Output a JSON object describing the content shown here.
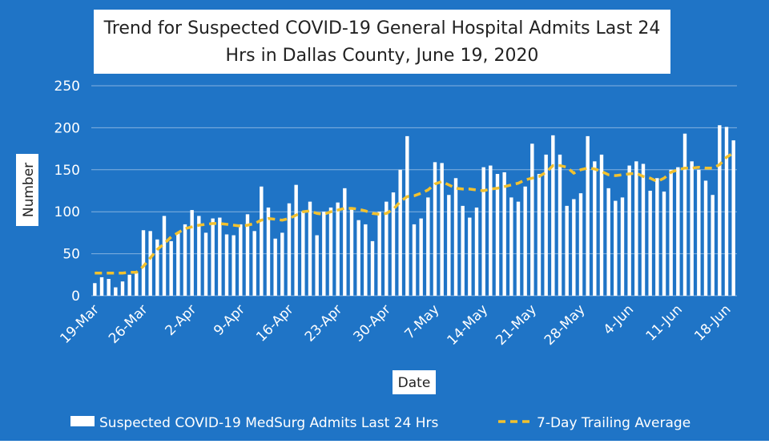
{
  "chart_data": {
    "type": "bar",
    "title": [
      "Trend for Suspected COVID-19 General Hospital Admits Last 24",
      "Hrs in Dallas County, June 19, 2020"
    ],
    "x_label": "Date",
    "y_label": "Number",
    "categories": [
      "19-Mar",
      null,
      null,
      null,
      null,
      null,
      null,
      "26-Mar",
      null,
      null,
      null,
      null,
      null,
      null,
      "2-Apr",
      null,
      null,
      null,
      null,
      null,
      null,
      "9-Apr",
      null,
      null,
      null,
      null,
      null,
      null,
      "16-Apr",
      null,
      null,
      null,
      null,
      null,
      null,
      "23-Apr",
      null,
      null,
      null,
      null,
      null,
      null,
      "30-Apr",
      null,
      null,
      null,
      null,
      null,
      null,
      "7-May",
      null,
      null,
      null,
      null,
      null,
      null,
      "14-May",
      null,
      null,
      null,
      null,
      null,
      null,
      "21-May",
      null,
      null,
      null,
      null,
      null,
      null,
      "28-May",
      null,
      null,
      null,
      null,
      null,
      null,
      "4-Jun",
      null,
      null,
      null,
      null,
      null,
      null,
      "11-Jun",
      null,
      null,
      null,
      null,
      null,
      null,
      "18-Jun",
      null
    ],
    "series": [
      {
        "name": "Suspected COVID-19 MedSurg Admits Last 24 Hrs",
        "color": "#ffffff",
        "type": "bar",
        "values": [
          15,
          22,
          20,
          10,
          17,
          25,
          27,
          78,
          77,
          67,
          95,
          65,
          75,
          85,
          102,
          95,
          75,
          92,
          93,
          73,
          72,
          85,
          97,
          77,
          130,
          105,
          68,
          75,
          110,
          132,
          100,
          112,
          72,
          100,
          105,
          111,
          128,
          105,
          90,
          85,
          65,
          100,
          112,
          123,
          150,
          190,
          85,
          92,
          117,
          159,
          158,
          120,
          140,
          107,
          93,
          105,
          153,
          155,
          145,
          147,
          117,
          112,
          130,
          181,
          145,
          168,
          191,
          168,
          107,
          115,
          122,
          190,
          160,
          168,
          128,
          113,
          117,
          155,
          160,
          157,
          125,
          140,
          124,
          150,
          153,
          193,
          160,
          150,
          137,
          120,
          203,
          201,
          185
        ]
      },
      {
        "name": "7-Day Trailing Average",
        "color": "#f2c12e",
        "type": "line",
        "values": [
          27,
          27,
          27,
          27,
          27,
          28,
          28,
          35,
          45,
          55,
          62,
          70,
          75,
          80,
          82,
          84,
          85,
          86,
          86,
          85,
          84,
          83,
          84,
          86,
          90,
          92,
          91,
          90,
          92,
          96,
          100,
          101,
          98,
          97,
          100,
          102,
          104,
          104,
          103,
          101,
          98,
          97,
          98,
          103,
          112,
          118,
          119,
          122,
          126,
          133,
          136,
          132,
          128,
          127,
          127,
          126,
          125,
          127,
          128,
          130,
          132,
          134,
          138,
          140,
          142,
          147,
          155,
          155,
          153,
          146,
          150,
          152,
          151,
          148,
          144,
          143,
          144,
          145,
          146,
          142,
          140,
          136,
          140,
          147,
          150,
          152,
          152,
          153,
          152,
          152,
          156,
          165,
          170
        ]
      }
    ],
    "ylim": [
      0,
      250
    ],
    "yticks": [
      0,
      50,
      100,
      150,
      200,
      250
    ],
    "grid": true
  }
}
